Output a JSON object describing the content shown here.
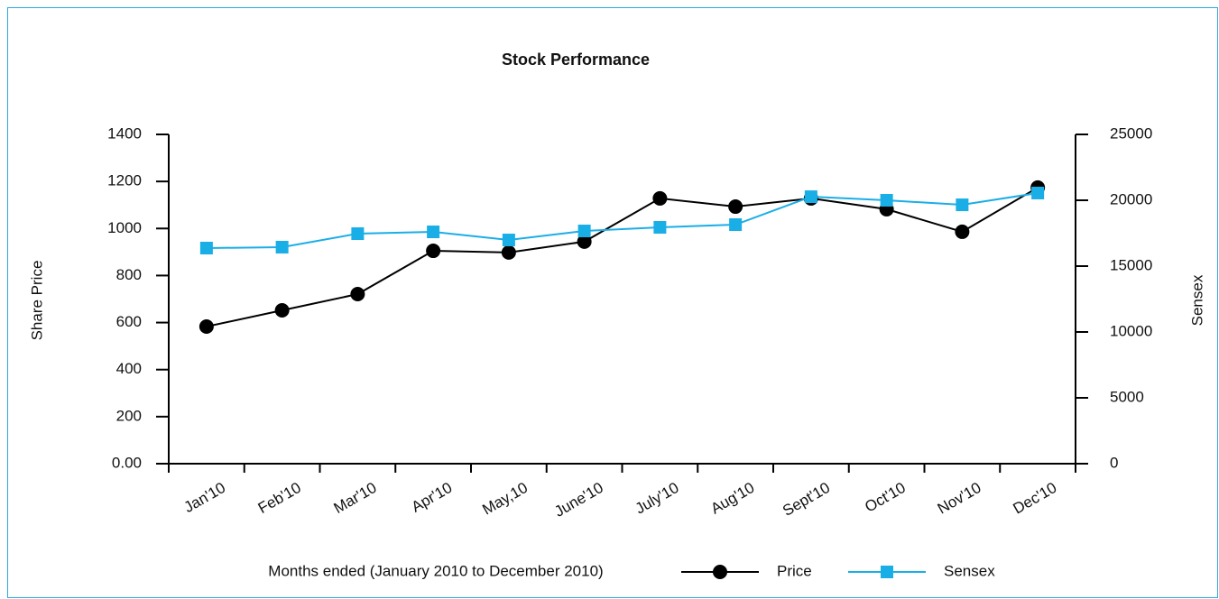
{
  "chart_data": {
    "type": "line",
    "title": "Stock Performance",
    "x_label": "Months ended (January 2010 to December 2010)",
    "y_label": "Share Price",
    "y2_label": "Sensex",
    "categories": [
      "Jan'10",
      "Feb'10",
      "Mar'10",
      "Apr'10",
      "May,10",
      "June'10",
      "July'10",
      "Aug'10",
      "Sept'10",
      "Oct'10",
      "Nov'10",
      "Dec'10"
    ],
    "series": [
      {
        "name": "Price",
        "color": "#000000",
        "marker": "circle",
        "values": [
          583,
          652,
          721,
          905,
          898,
          944,
          1128,
          1093,
          1128,
          1082,
          986,
          1174
        ]
      },
      {
        "name": "Sensex",
        "color": "#1aaee6",
        "marker": "square",
        "axis": "y2",
        "values": [
          16370,
          16440,
          17465,
          17600,
          16985,
          17670,
          17945,
          18150,
          20270,
          20000,
          19655,
          20550
        ]
      }
    ],
    "ylim": [
      0,
      1400
    ],
    "yticks": [
      {
        "value": 0,
        "label": "0.00"
      },
      200,
      400,
      600,
      800,
      1000,
      1200,
      1400
    ],
    "y2lim": [
      0,
      25000
    ],
    "y2ticks": [
      0,
      5000,
      10000,
      15000,
      20000,
      25000
    ],
    "legend": "bottom"
  }
}
